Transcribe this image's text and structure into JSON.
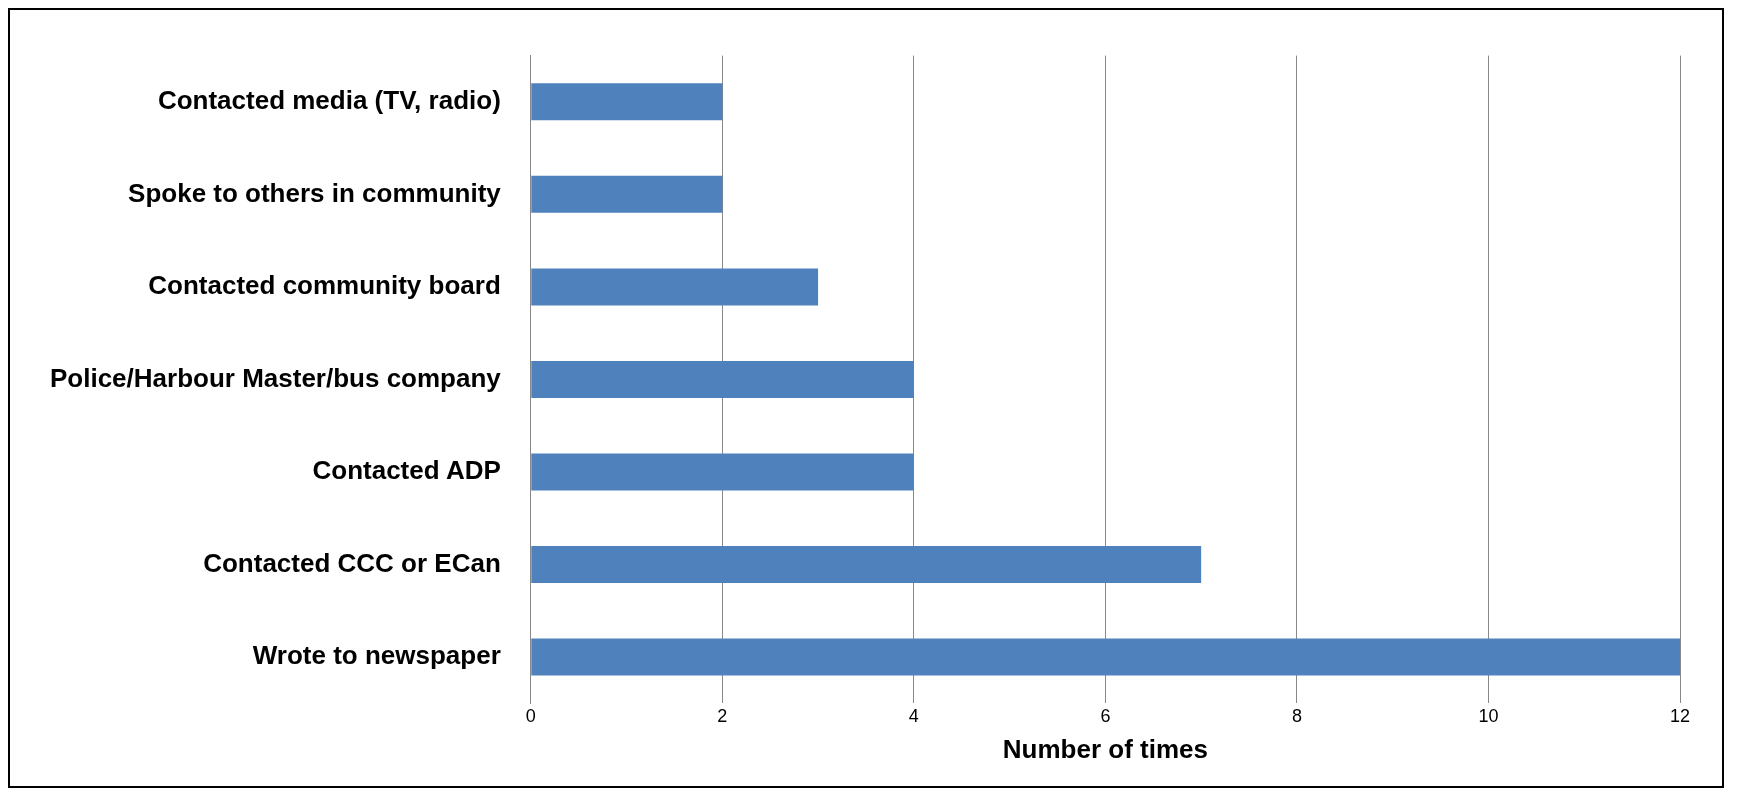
{
  "chart_data": {
    "type": "bar",
    "orientation": "horizontal",
    "xlabel": "Number of times",
    "categories": [
      "Contacted media (TV, radio)",
      "Spoke to others in community",
      "Contacted community board",
      "Police/Harbour Master/bus company",
      "Contacted ADP",
      "Contacted CCC or ECan",
      "Wrote to newspaper"
    ],
    "values": [
      2,
      2,
      3,
      4,
      4,
      7,
      12
    ],
    "color": "#4f81bd",
    "xlim": [
      0,
      12
    ],
    "xticks": [
      0,
      2,
      4,
      6,
      8,
      10,
      12
    ],
    "grid": "x",
    "legend": false
  }
}
